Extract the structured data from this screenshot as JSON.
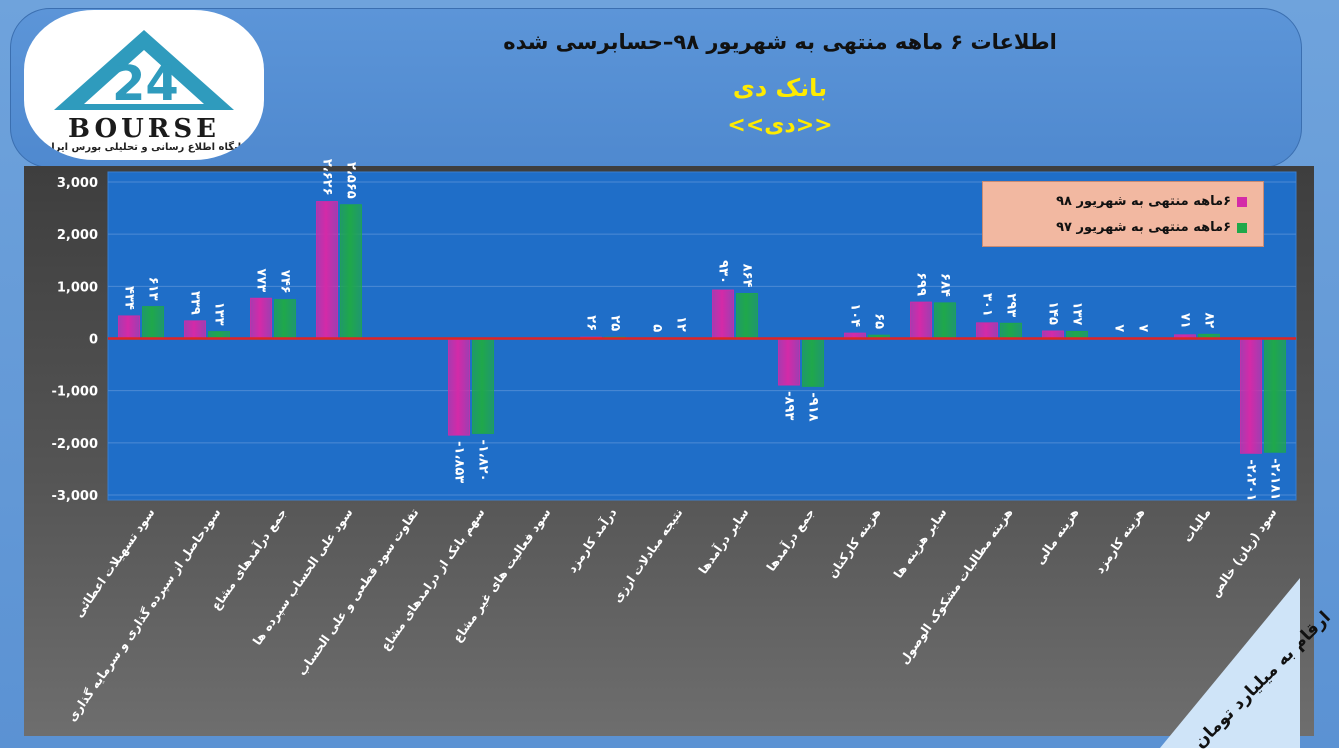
{
  "header": {
    "title_line1": "اطلاعات ۶ ماهه منتهی به شهریور ۹۸–حسابرسی شده",
    "title_line2": "بانک دی",
    "title_line3": "<<دی>>"
  },
  "logo": {
    "text": "BOURSE",
    "subtitle": "پایگاه اطلاع رسانی و تحلیلی بورس ایران"
  },
  "unit_label": "ارقام به میلیارد تومان",
  "colors": {
    "series1": "#d42aa8",
    "series2": "#1fa84a",
    "plot_bg": "#1f6ec8",
    "zero_line": "#e02424"
  },
  "chart_data": {
    "type": "bar",
    "categories": [
      "سود تسهیلات اعطائی",
      "سودحاصل از سپرده گذاری و سرمایه گذاری",
      "جمع درآمدهای مشاع",
      "سود علی الحساب سپرده ها",
      "تفاوت سود قطعی و علی الحساب",
      "سهم بانک از درامدهای مشاع",
      "سود فعالیت های غیر مشاع",
      "درآمد کارمزد",
      "نتیجه مبادلات ارزی",
      "سایر درآمدها",
      "جمع درآمدها",
      "هزینه کارکنان",
      "سایر هزینه ها",
      "هزینه مطالبات مشکوک الوصول",
      "هزینه مالی",
      "هزینه کارمزد",
      "مالیات",
      "سود (زیان) خالص"
    ],
    "series": [
      {
        "name": "۶ماهه منتهی به شهریور ۹۸",
        "values": [
          434,
          339,
          773,
          2626,
          0,
          -1853,
          0,
          26,
          5,
          930,
          -893,
          104,
          699,
          301,
          145,
          7,
          71,
          -2201
        ],
        "labels": [
          "۴۳۴",
          "۳۳۹",
          "۷۷۳",
          "۲،۶۲۶",
          "",
          "-۱،۸۵۳",
          "",
          "۲۶",
          "۵",
          "۹۳۰",
          "-۸۹۳",
          "۱۰۴",
          "۶۹۹",
          "۳۰۱",
          "۱۴۵",
          "۷",
          "۷۱",
          "-۲،۲۰۱"
        ]
      },
      {
        "name": "۶ماهه منتهی به شهریور ۹۷",
        "values": [
          613,
          133,
          746,
          2565,
          0,
          -1820,
          0,
          25,
          12,
          864,
          -918,
          65,
          684,
          293,
          137,
          7,
          82,
          -2181
        ],
        "labels": [
          "۶۱۳",
          "۱۳۳",
          "۷۴۶",
          "۲،۵۶۵",
          "",
          "-۱،۸۲۰",
          "",
          "۲۵",
          "۱۲",
          "۸۶۴",
          "-۹۱۸",
          "۶۵",
          "۶۸۴",
          "۲۹۳",
          "۱۳۷",
          "۷",
          "۸۲",
          "-۲،۱۸۱"
        ]
      }
    ],
    "yticks": [
      "3,000",
      "2,000",
      "1,000",
      "0",
      "-1,000",
      "-2,000",
      "-3,000"
    ],
    "ylim": [
      -3000,
      3000
    ],
    "legend_position": "top-right"
  }
}
